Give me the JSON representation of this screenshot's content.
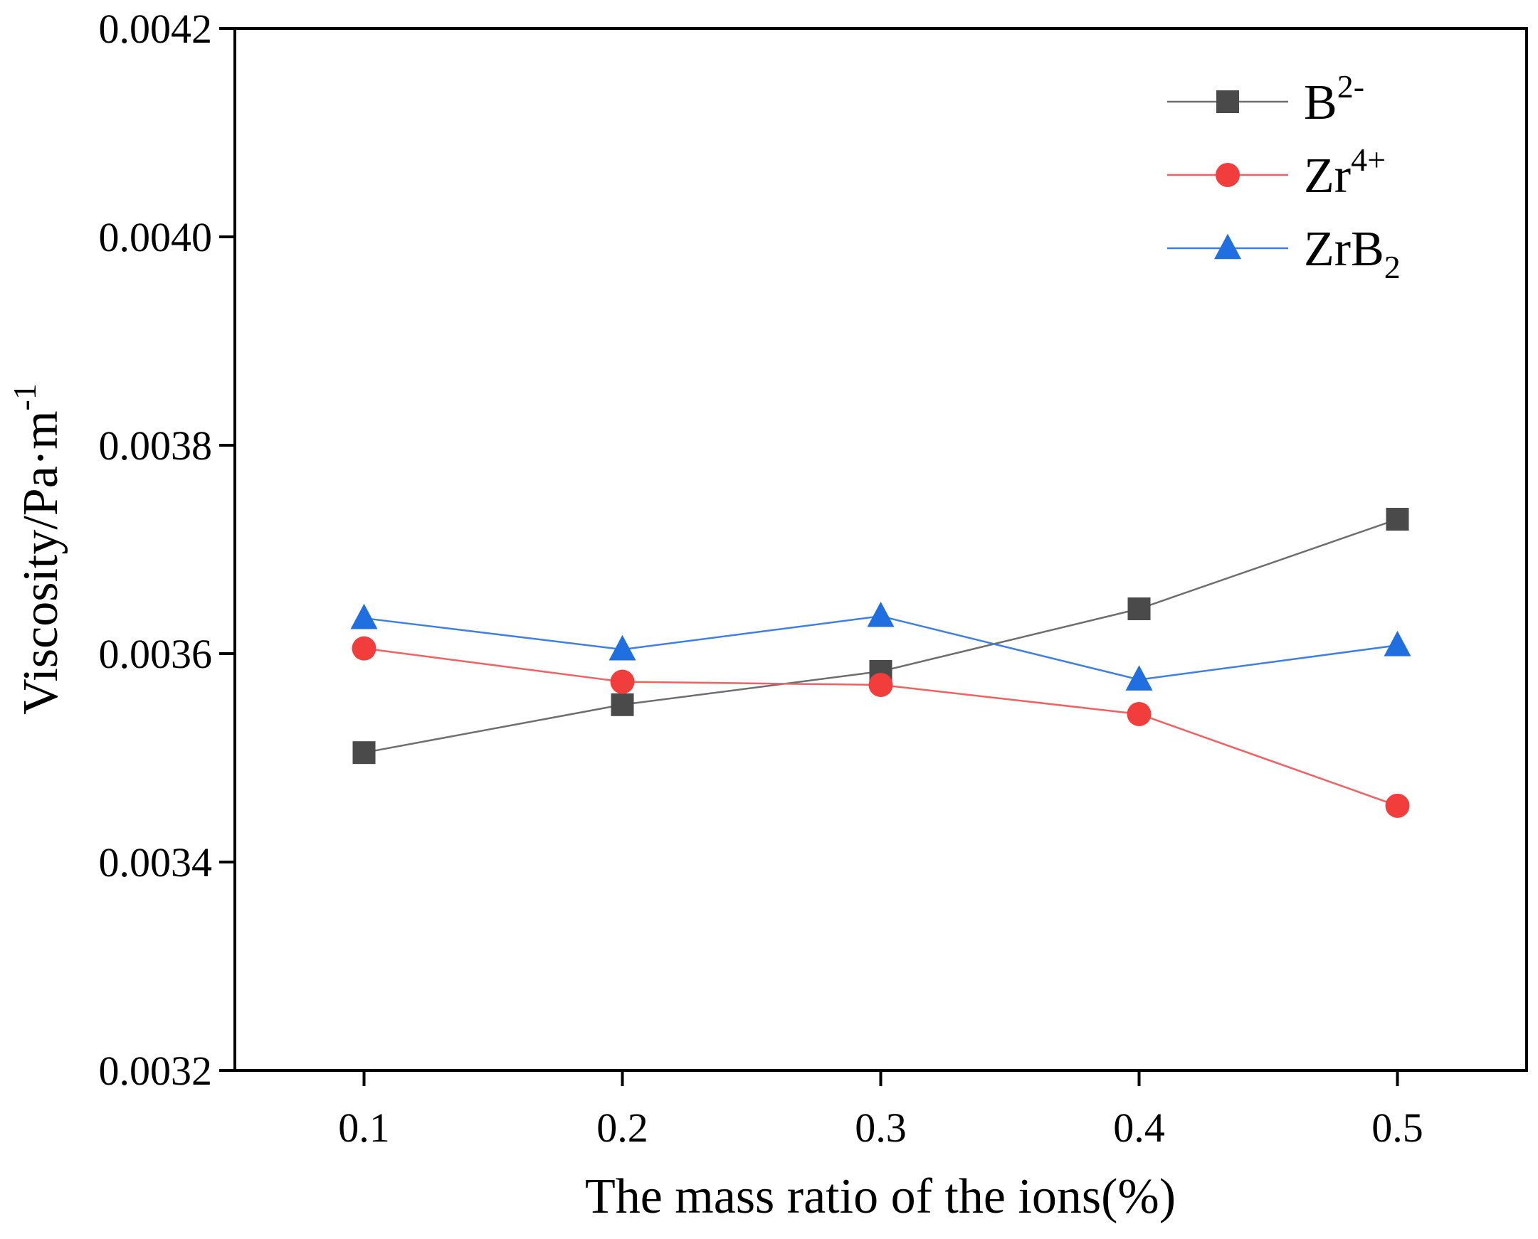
{
  "chart_data": {
    "type": "line",
    "title": "",
    "xlabel": "The mass ratio of the ions(%)",
    "ylabel": "Viscosity/Pa·m",
    "ylabel_sup": "-1",
    "x": [
      0.1,
      0.2,
      0.3,
      0.4,
      0.5
    ],
    "x_tick_labels": [
      "0.1",
      "0.2",
      "0.3",
      "0.4",
      "0.5"
    ],
    "y_tick_values": [
      0.0032,
      0.0034,
      0.0036,
      0.0038,
      0.004,
      0.0042
    ],
    "y_tick_labels": [
      "0.0032",
      "0.0034",
      "0.0036",
      "0.0038",
      "0.0040",
      "0.0042"
    ],
    "xlim": [
      0.05,
      0.55
    ],
    "ylim": [
      0.0032,
      0.0042
    ],
    "grid": false,
    "legend_position": "top-right",
    "series": [
      {
        "name": "B",
        "name_sup": "2-",
        "name_sub": "",
        "marker": "square",
        "color": "#4a4a4a",
        "line_color": "#6e6e6e",
        "values": [
          0.003505,
          0.003551,
          0.003583,
          0.003643,
          0.003729
        ]
      },
      {
        "name": "Zr",
        "name_sup": "4+",
        "name_sub": "",
        "marker": "circle",
        "color": "#f23d3d",
        "line_color": "#f26060",
        "values": [
          0.003605,
          0.003573,
          0.00357,
          0.003542,
          0.003454
        ]
      },
      {
        "name": "ZrB",
        "name_sup": "",
        "name_sub": "2",
        "marker": "triangle",
        "color": "#1f6fe0",
        "line_color": "#3d7fe6",
        "values": [
          0.003634,
          0.003604,
          0.003636,
          0.003575,
          0.003608
        ]
      }
    ]
  }
}
